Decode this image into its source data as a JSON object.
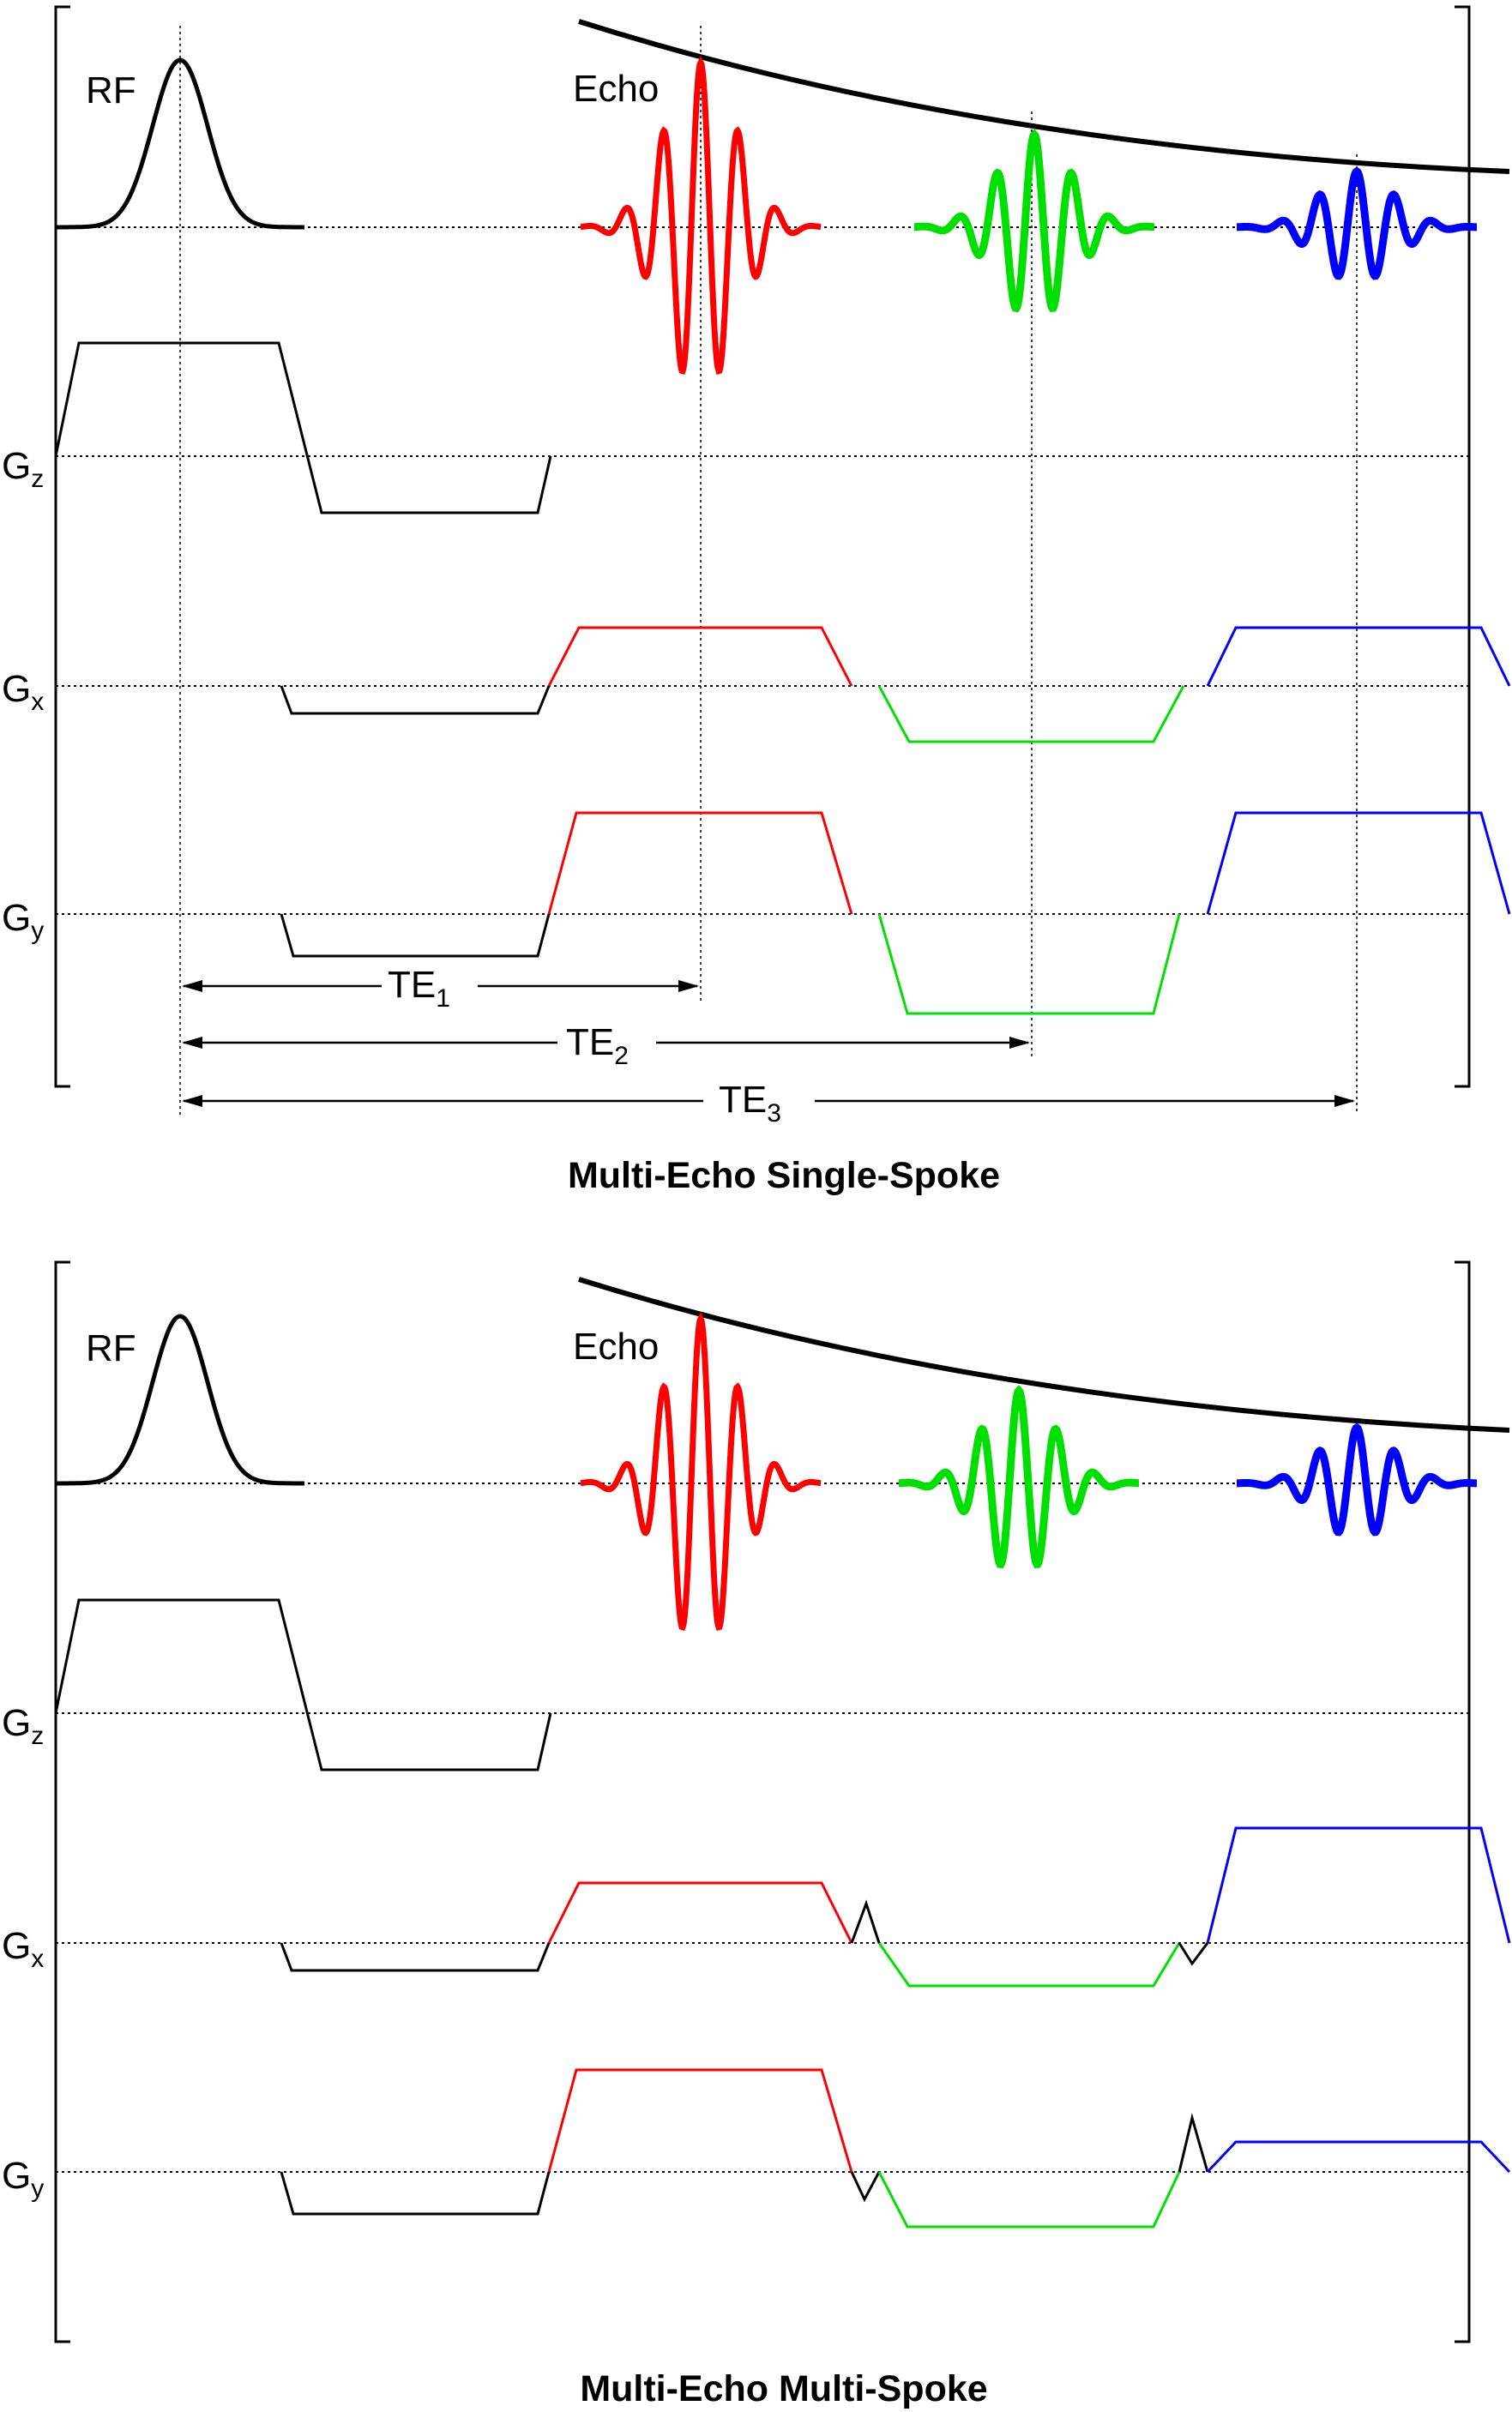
{
  "colors": {
    "ink": "#000000",
    "echo1": "#ff0000",
    "echo2": "#00e000",
    "echo3": "#0000ff"
  },
  "panels": [
    {
      "id": "single",
      "caption": "Multi-Echo Single-Spoke",
      "labels": {
        "rf": "RF",
        "echo": "Echo",
        "gz": {
          "main": "G",
          "sub": "z"
        },
        "gx": {
          "main": "G",
          "sub": "x"
        },
        "gy": {
          "main": "G",
          "sub": "y"
        }
      },
      "echo_times": [
        {
          "main": "TE",
          "sub": "1"
        },
        {
          "main": "TE",
          "sub": "2"
        },
        {
          "main": "TE",
          "sub": "3"
        }
      ],
      "blips": false
    },
    {
      "id": "multi",
      "caption": "Multi-Echo Multi-Spoke",
      "labels": {
        "rf": "RF",
        "echo": "Echo",
        "gz": {
          "main": "G",
          "sub": "z"
        },
        "gx": {
          "main": "G",
          "sub": "x"
        },
        "gy": {
          "main": "G",
          "sub": "y"
        }
      },
      "echo_times": [],
      "blips": true
    }
  ]
}
